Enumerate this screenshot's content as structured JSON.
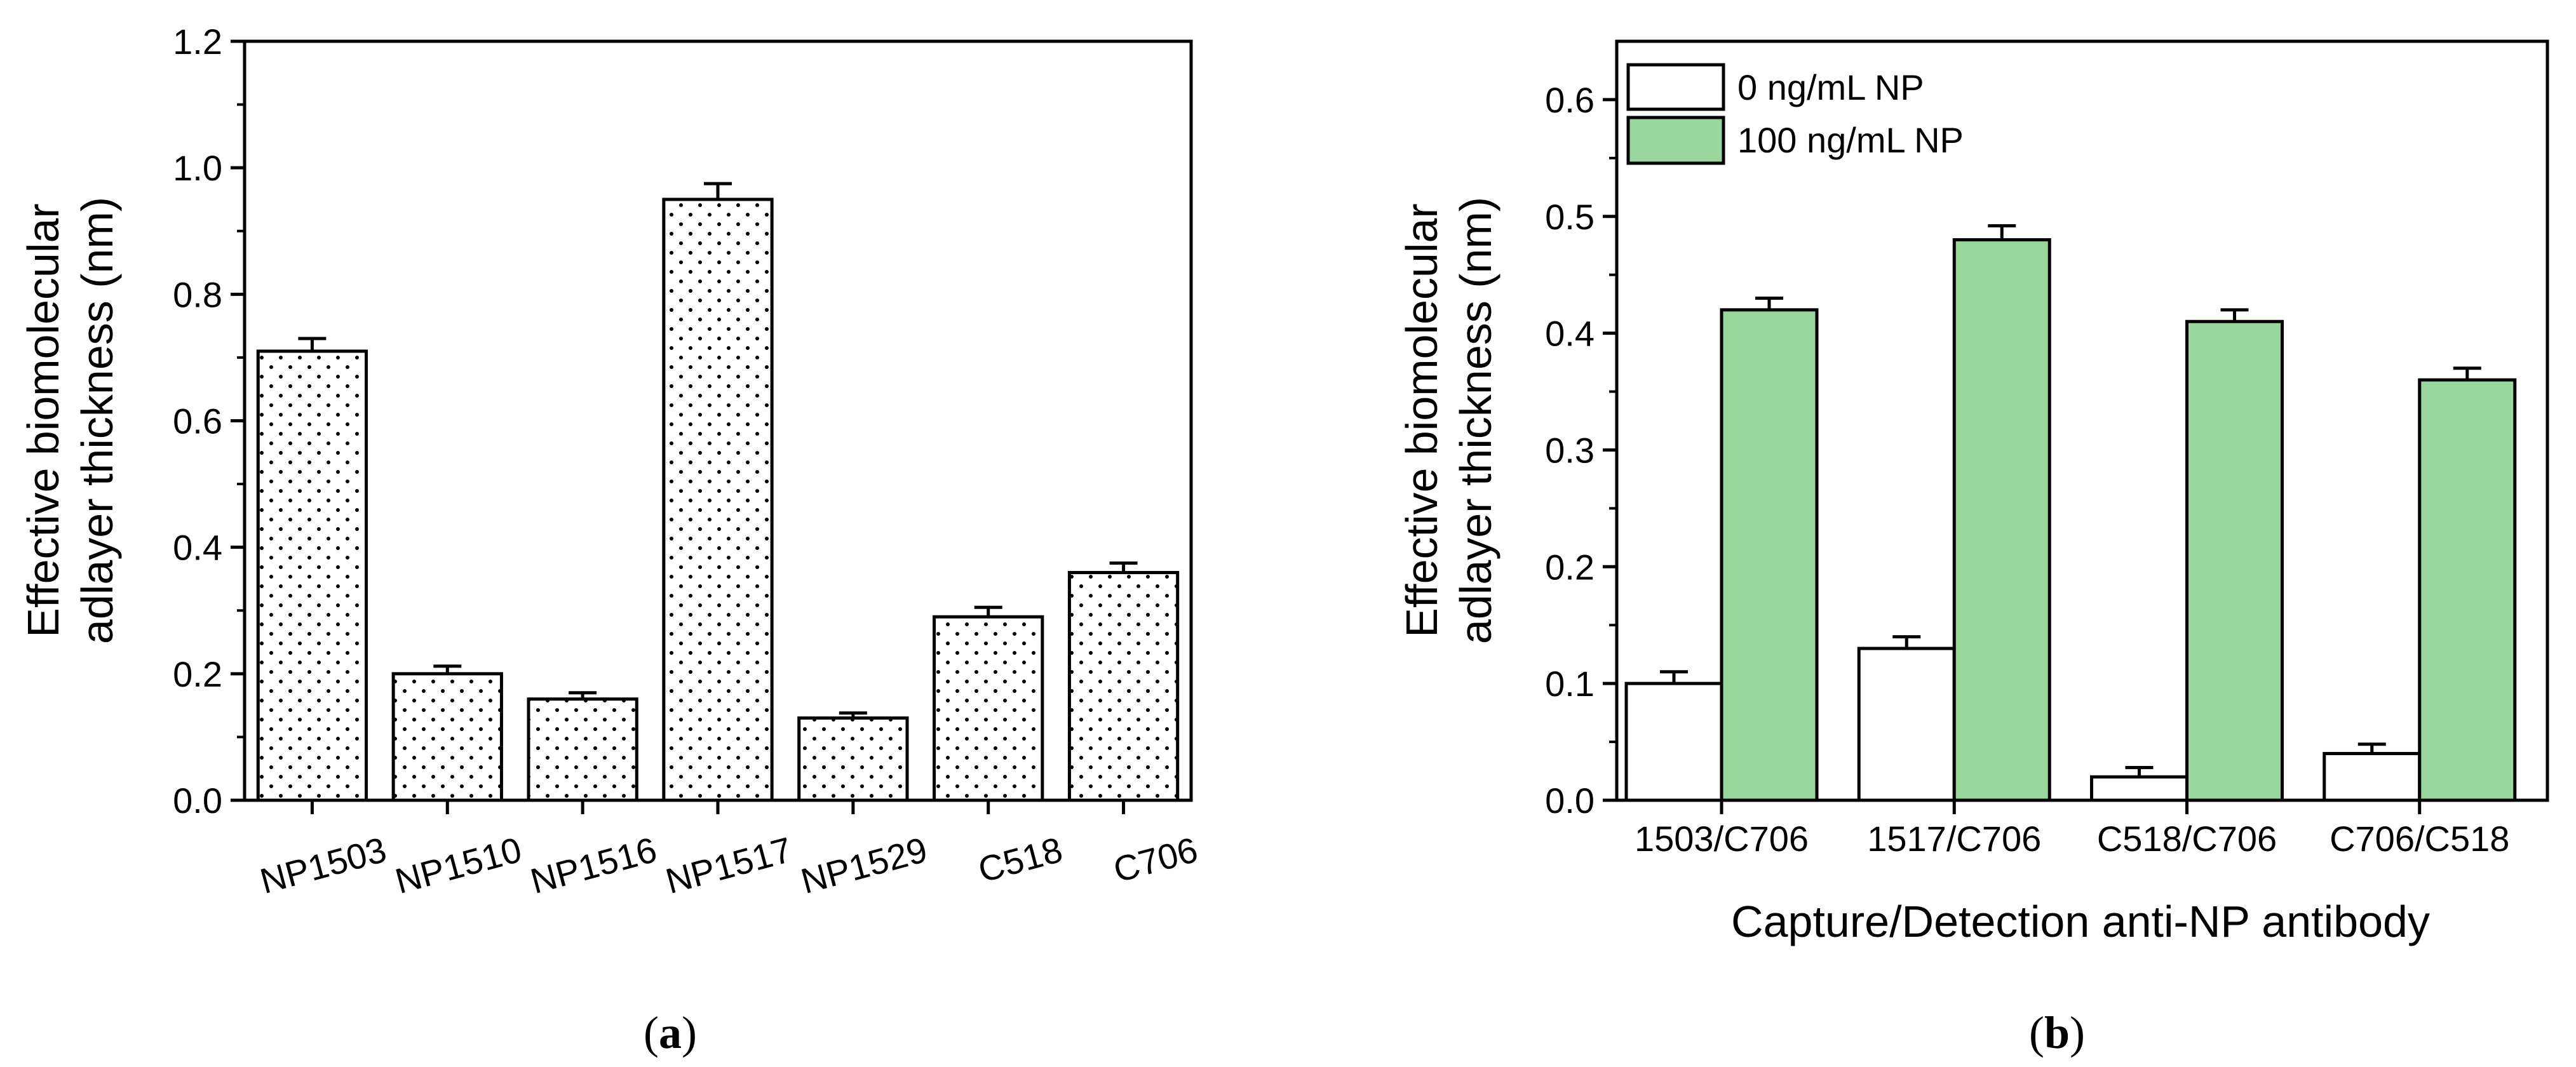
{
  "colors": {
    "green": "#98d69b",
    "white": "#ffffff",
    "black": "#000000"
  },
  "charts": {
    "a": {
      "chart_data": {
        "type": "bar",
        "title": "",
        "xlabel": "",
        "ylabel": [
          "Effective biomolecular",
          "adlayer thickness (nm)"
        ],
        "ylim": [
          0,
          1.2
        ],
        "yticks": [
          "0.0",
          "0.2",
          "0.4",
          "0.6",
          "0.8",
          "1.0",
          "1.2"
        ],
        "yticks_values": [
          0,
          0.2,
          0.4,
          0.6,
          0.8,
          1.0,
          1.2
        ],
        "categories": [
          "NP1503",
          "NP1510",
          "NP1516",
          "NP1517",
          "NP1529",
          "C518",
          "C706"
        ],
        "values": [
          0.71,
          0.2,
          0.16,
          0.95,
          0.13,
          0.29,
          0.36
        ],
        "errors": [
          0.02,
          0.012,
          0.01,
          0.025,
          0.008,
          0.015,
          0.015
        ],
        "fill": "dotted"
      },
      "panel_label": "a"
    },
    "b": {
      "chart_data": {
        "type": "bar",
        "title": "",
        "xlabel": "Capture/Detection anti-NP antibody",
        "ylabel": [
          "Effective biomolecular",
          "adlayer thickness (nm)"
        ],
        "ylim": [
          0,
          0.65
        ],
        "yticks": [
          "0.0",
          "0.1",
          "0.2",
          "0.3",
          "0.4",
          "0.5",
          "0.6"
        ],
        "yticks_values": [
          0,
          0.1,
          0.2,
          0.3,
          0.4,
          0.5,
          0.6
        ],
        "categories": [
          "1503/C706",
          "1517/C706",
          "C518/C706",
          "C706/C518"
        ],
        "series": [
          {
            "name": "0 ng/mL NP",
            "values": [
              0.1,
              0.13,
              0.02,
              0.04
            ],
            "errors": [
              0.01,
              0.01,
              0.008,
              0.008
            ]
          },
          {
            "name": "100 ng/mL NP",
            "values": [
              0.42,
              0.48,
              0.41,
              0.36
            ],
            "errors": [
              0.01,
              0.012,
              0.01,
              0.01
            ]
          }
        ],
        "legend": "top-left"
      },
      "panel_label": "b"
    }
  }
}
